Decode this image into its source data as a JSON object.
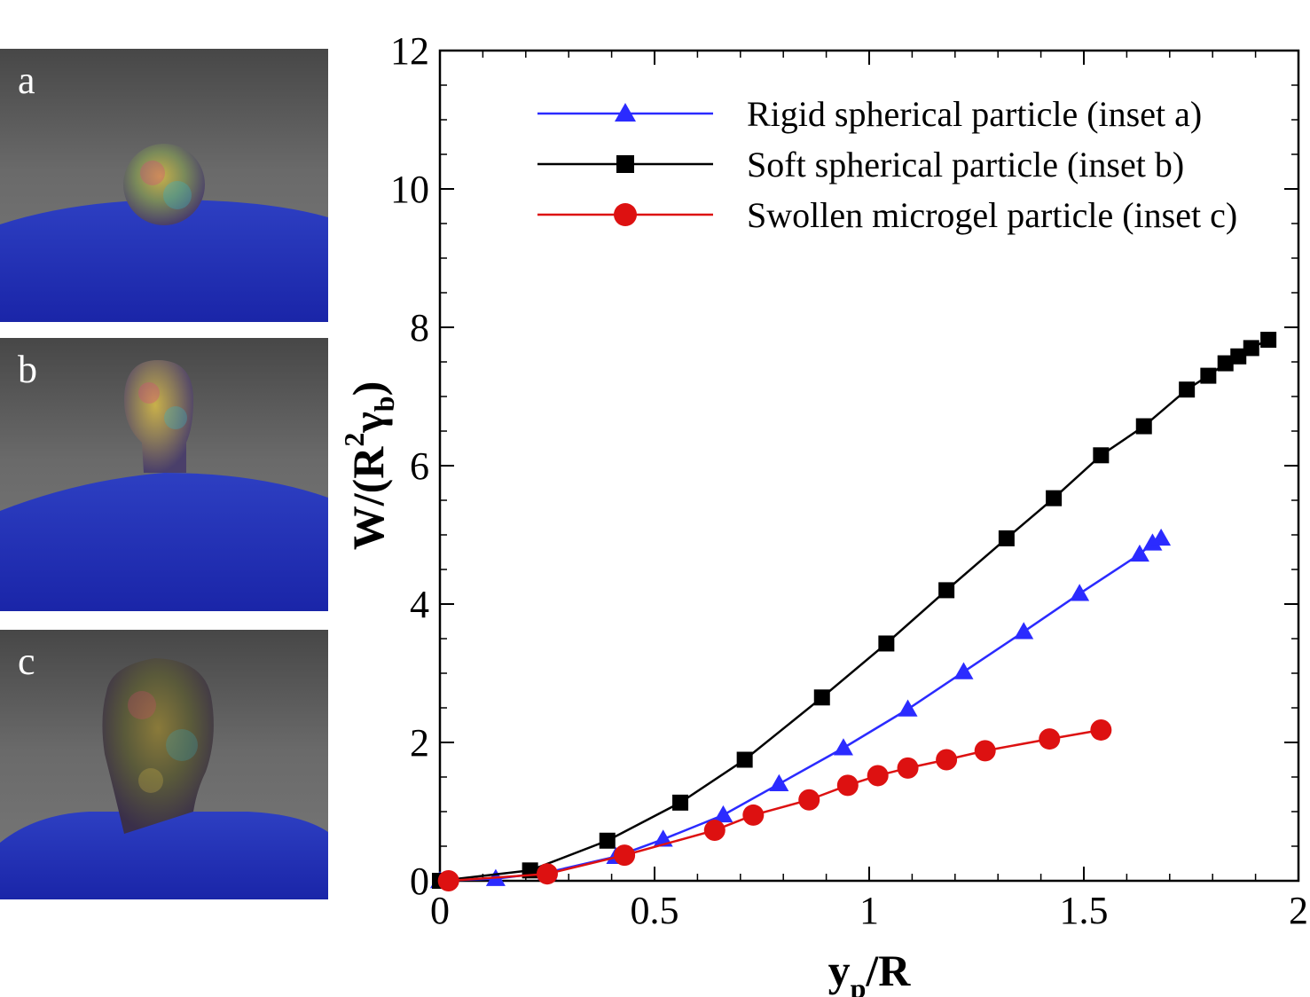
{
  "insets": [
    {
      "label": "a",
      "shape": "rigid-sphere"
    },
    {
      "label": "b",
      "shape": "soft-sphere"
    },
    {
      "label": "c",
      "shape": "swollen-microgel"
    }
  ],
  "chart_data": {
    "type": "line",
    "title": "",
    "xlabel": {
      "main": "y",
      "sub": "p",
      "tail": "/R"
    },
    "ylabel": {
      "prefix": "W/(R",
      "sup": "2",
      "greek": "γ",
      "sub": "b",
      "suffix": ")"
    },
    "xlim": [
      0,
      2
    ],
    "ylim": [
      0,
      12
    ],
    "xticks": [
      0,
      0.5,
      1,
      1.5,
      2
    ],
    "xtick_labels": [
      "0",
      "0.5",
      "1",
      "1.5",
      "2"
    ],
    "yticks": [
      0,
      2,
      4,
      6,
      8,
      10,
      12
    ],
    "ytick_labels": [
      "0",
      "2",
      "4",
      "6",
      "8",
      "10",
      "12"
    ],
    "grid": false,
    "legend_position": "top-right",
    "series": [
      {
        "name": "Rigid spherical particle (inset a)",
        "color": "#2b2bff",
        "marker": "triangle",
        "x": [
          0,
          0.13,
          0.25,
          0.41,
          0.52,
          0.66,
          0.79,
          0.94,
          1.09,
          1.22,
          1.36,
          1.49,
          1.63,
          1.66,
          1.68
        ],
        "y": [
          0,
          0.03,
          0.12,
          0.35,
          0.6,
          0.95,
          1.4,
          1.92,
          2.48,
          3.02,
          3.6,
          4.15,
          4.72,
          4.88,
          4.95
        ]
      },
      {
        "name": "Soft spherical particle (inset b)",
        "color": "#000000",
        "marker": "square",
        "x": [
          0,
          0.21,
          0.39,
          0.56,
          0.71,
          0.89,
          1.04,
          1.18,
          1.32,
          1.43,
          1.54,
          1.64,
          1.74,
          1.79,
          1.83,
          1.86,
          1.89,
          1.93
        ],
        "y": [
          0,
          0.15,
          0.58,
          1.13,
          1.75,
          2.65,
          3.43,
          4.2,
          4.95,
          5.53,
          6.15,
          6.57,
          7.1,
          7.3,
          7.48,
          7.58,
          7.7,
          7.82
        ]
      },
      {
        "name": "Swollen microgel particle (inset c)",
        "color": "#dd1111",
        "marker": "circle",
        "x": [
          0.02,
          0.25,
          0.43,
          0.64,
          0.73,
          0.86,
          0.95,
          1.02,
          1.09,
          1.18,
          1.27,
          1.42,
          1.54
        ],
        "y": [
          0,
          0.1,
          0.37,
          0.73,
          0.95,
          1.17,
          1.38,
          1.52,
          1.63,
          1.75,
          1.88,
          2.05,
          2.18
        ]
      }
    ]
  }
}
